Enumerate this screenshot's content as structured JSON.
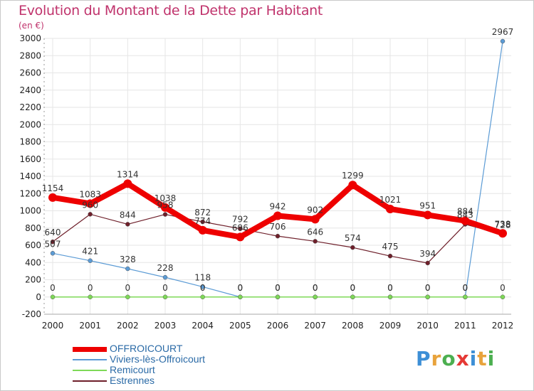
{
  "title": "Evolution du Montant de la Dette par Habitant",
  "subtitle": "(en €)",
  "logo": {
    "letters": [
      "P",
      "r",
      "o",
      "x",
      "i",
      "t",
      "i"
    ],
    "colors": [
      "#3d8fd6",
      "#e8a33c",
      "#4caf50",
      "#e53935",
      "#3d8fd6",
      "#e8a33c",
      "#4caf50"
    ]
  },
  "chart_data": {
    "type": "line",
    "x": [
      "2000",
      "2001",
      "2002",
      "2003",
      "2004",
      "2005",
      "2006",
      "2007",
      "2008",
      "2009",
      "2010",
      "2011",
      "2012"
    ],
    "ylim": [
      -200,
      3000
    ],
    "yticks": [
      -200,
      0,
      200,
      400,
      600,
      800,
      1000,
      1200,
      1400,
      1600,
      1800,
      2000,
      2200,
      2400,
      2600,
      2800,
      3000
    ],
    "grid": true,
    "legend_position": "bottom-left",
    "series": [
      {
        "name": "OFFROICOURT",
        "color": "#ee0000",
        "values": [
          1154,
          1083,
          1314,
          1038,
          774,
          696,
          942,
          902,
          1299,
          1021,
          951,
          884,
          738
        ]
      },
      {
        "name": "Viviers-lès-Offroicourt",
        "color": "#5b9bd5",
        "values": [
          507,
          421,
          328,
          228,
          118,
          0,
          0,
          0,
          0,
          0,
          0,
          0,
          2967
        ]
      },
      {
        "name": "Remicourt",
        "color": "#7ed957",
        "values": [
          0,
          0,
          0,
          0,
          0,
          0,
          0,
          0,
          0,
          0,
          0,
          0,
          0
        ]
      },
      {
        "name": "Estrennes",
        "color": "#6e1f2a",
        "values": [
          640,
          960,
          844,
          958,
          872,
          792,
          706,
          646,
          574,
          475,
          394,
          843,
          728
        ]
      }
    ]
  }
}
